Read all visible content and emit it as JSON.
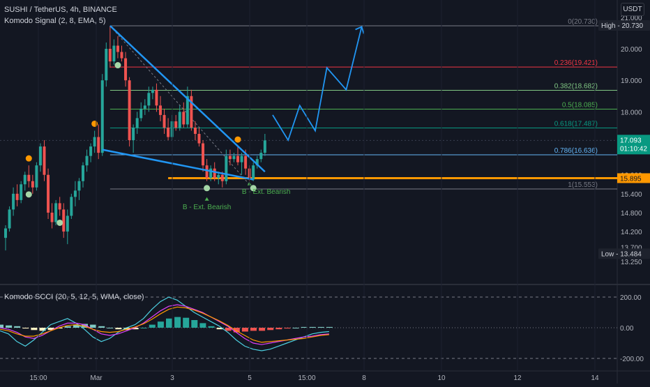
{
  "header": {
    "symbol_line": "SUSHI / TetherUS, 4h, BINANCE",
    "indicator_line": "Komodo Signal (2, 8, EMA, 5)",
    "currency": "USDT"
  },
  "oscillator": {
    "legend": "Komodo SCCI (20, 5, 12, 5, WMA, close)",
    "ticks": [
      "200.00",
      "0.00",
      "-200.00"
    ]
  },
  "price_axis": {
    "ticks": [
      "21.000",
      "20.000",
      "19.000",
      "18.000",
      "17.000",
      "16.000",
      "15.400",
      "14.800",
      "14.200",
      "13.700",
      "13.250"
    ],
    "high_tag": "High - 20.730",
    "low_tag": "Low - 13.484",
    "last_price": "17.093",
    "countdown": "01:10:42",
    "support_label": "15.895"
  },
  "time_axis": [
    "15:00",
    "Mar",
    "3",
    "5",
    "15:00",
    "8",
    "10",
    "12",
    "14"
  ],
  "fib_levels": [
    {
      "label": "0(20.730)",
      "color": "#787b86"
    },
    {
      "label": "0.236(19.421)",
      "color": "#f23645"
    },
    {
      "label": "0.382(18.682)",
      "color": "#81c784"
    },
    {
      "label": "0.5(18.085)",
      "color": "#4caf50"
    },
    {
      "label": "0.618(17.487)",
      "color": "#089981"
    },
    {
      "label": "0.786(16.636)",
      "color": "#64b5f6"
    },
    {
      "label": "1(15.553)",
      "color": "#787b86"
    }
  ],
  "annotations": [
    {
      "text": "B - Ext. Bearish"
    },
    {
      "text": "B - Ext. Bearish"
    }
  ],
  "colors": {
    "up": "#26a69a",
    "down": "#ef5350",
    "wedge": "#2196f3",
    "support": "#ff9800",
    "projection": "#2196f3",
    "buy_dot": "#a5d6a7",
    "sell_dot": "#ff9800"
  },
  "chart_data": {
    "type": "candlestick",
    "symbol": "SUSHI / TetherUS",
    "interval": "4h",
    "candles": [
      {
        "o": 14.0,
        "h": 14.4,
        "l": 13.6,
        "c": 14.3
      },
      {
        "o": 14.3,
        "h": 15.0,
        "l": 14.2,
        "c": 14.9
      },
      {
        "o": 14.9,
        "h": 15.6,
        "l": 14.7,
        "c": 15.4
      },
      {
        "o": 15.4,
        "h": 15.7,
        "l": 15.0,
        "c": 15.2
      },
      {
        "o": 15.2,
        "h": 15.8,
        "l": 15.1,
        "c": 15.7
      },
      {
        "o": 15.7,
        "h": 16.1,
        "l": 15.5,
        "c": 16.0
      },
      {
        "o": 16.0,
        "h": 16.3,
        "l": 15.6,
        "c": 15.8
      },
      {
        "o": 15.8,
        "h": 16.0,
        "l": 15.4,
        "c": 15.6
      },
      {
        "o": 15.6,
        "h": 16.4,
        "l": 15.5,
        "c": 16.3
      },
      {
        "o": 16.3,
        "h": 17.0,
        "l": 16.1,
        "c": 16.9
      },
      {
        "o": 16.9,
        "h": 17.1,
        "l": 15.8,
        "c": 16.0
      },
      {
        "o": 16.0,
        "h": 16.2,
        "l": 14.6,
        "c": 14.8
      },
      {
        "o": 14.8,
        "h": 15.1,
        "l": 14.3,
        "c": 14.5
      },
      {
        "o": 14.5,
        "h": 15.2,
        "l": 14.4,
        "c": 15.1
      },
      {
        "o": 15.1,
        "h": 15.3,
        "l": 14.7,
        "c": 14.9
      },
      {
        "o": 14.9,
        "h": 15.1,
        "l": 14.0,
        "c": 14.2
      },
      {
        "o": 14.2,
        "h": 14.9,
        "l": 13.8,
        "c": 14.7
      },
      {
        "o": 14.7,
        "h": 15.4,
        "l": 14.6,
        "c": 15.3
      },
      {
        "o": 15.3,
        "h": 15.8,
        "l": 15.0,
        "c": 15.5
      },
      {
        "o": 15.5,
        "h": 15.9,
        "l": 15.2,
        "c": 15.8
      },
      {
        "o": 15.8,
        "h": 16.4,
        "l": 15.6,
        "c": 16.3
      },
      {
        "o": 16.3,
        "h": 16.8,
        "l": 16.1,
        "c": 16.6
      },
      {
        "o": 16.6,
        "h": 17.0,
        "l": 16.4,
        "c": 16.9
      },
      {
        "o": 16.9,
        "h": 17.4,
        "l": 16.7,
        "c": 17.2
      },
      {
        "o": 17.2,
        "h": 17.6,
        "l": 16.5,
        "c": 16.7
      },
      {
        "o": 16.7,
        "h": 19.2,
        "l": 16.6,
        "c": 19.0
      },
      {
        "o": 19.0,
        "h": 20.2,
        "l": 18.8,
        "c": 20.0
      },
      {
        "o": 20.0,
        "h": 20.73,
        "l": 19.4,
        "c": 19.6
      },
      {
        "o": 19.6,
        "h": 20.3,
        "l": 19.5,
        "c": 20.1
      },
      {
        "o": 20.1,
        "h": 20.4,
        "l": 19.7,
        "c": 19.9
      },
      {
        "o": 19.9,
        "h": 20.1,
        "l": 19.6,
        "c": 19.7
      },
      {
        "o": 19.7,
        "h": 19.9,
        "l": 18.8,
        "c": 19.0
      },
      {
        "o": 19.0,
        "h": 19.1,
        "l": 16.9,
        "c": 17.1
      },
      {
        "o": 17.1,
        "h": 17.6,
        "l": 16.7,
        "c": 17.5
      },
      {
        "o": 17.5,
        "h": 18.0,
        "l": 17.3,
        "c": 17.8
      },
      {
        "o": 17.8,
        "h": 18.3,
        "l": 17.7,
        "c": 18.1
      },
      {
        "o": 18.1,
        "h": 18.4,
        "l": 17.9,
        "c": 18.2
      },
      {
        "o": 18.2,
        "h": 18.8,
        "l": 18.0,
        "c": 18.6
      },
      {
        "o": 18.6,
        "h": 18.8,
        "l": 18.4,
        "c": 18.7
      },
      {
        "o": 18.7,
        "h": 18.9,
        "l": 18.0,
        "c": 18.2
      },
      {
        "o": 18.2,
        "h": 18.5,
        "l": 17.7,
        "c": 17.9
      },
      {
        "o": 17.9,
        "h": 18.1,
        "l": 17.3,
        "c": 17.5
      },
      {
        "o": 17.5,
        "h": 17.8,
        "l": 17.1,
        "c": 17.2
      },
      {
        "o": 17.2,
        "h": 17.9,
        "l": 17.1,
        "c": 17.7
      },
      {
        "o": 17.7,
        "h": 17.9,
        "l": 17.4,
        "c": 17.5
      },
      {
        "o": 17.5,
        "h": 18.2,
        "l": 17.4,
        "c": 18.0
      },
      {
        "o": 18.0,
        "h": 18.3,
        "l": 17.5,
        "c": 17.6
      },
      {
        "o": 17.6,
        "h": 18.8,
        "l": 17.5,
        "c": 18.5
      },
      {
        "o": 18.5,
        "h": 18.7,
        "l": 17.4,
        "c": 17.5
      },
      {
        "o": 17.5,
        "h": 17.7,
        "l": 17.1,
        "c": 17.3
      },
      {
        "o": 17.3,
        "h": 17.5,
        "l": 16.9,
        "c": 17.0
      },
      {
        "o": 17.0,
        "h": 17.1,
        "l": 16.1,
        "c": 16.3
      },
      {
        "o": 16.3,
        "h": 16.5,
        "l": 15.8,
        "c": 15.9
      },
      {
        "o": 15.9,
        "h": 16.3,
        "l": 15.8,
        "c": 16.2
      },
      {
        "o": 16.2,
        "h": 16.4,
        "l": 15.8,
        "c": 15.9
      },
      {
        "o": 15.9,
        "h": 16.1,
        "l": 15.7,
        "c": 16.0
      },
      {
        "o": 16.0,
        "h": 16.1,
        "l": 15.6,
        "c": 15.8
      },
      {
        "o": 15.8,
        "h": 16.8,
        "l": 15.7,
        "c": 16.6
      },
      {
        "o": 16.6,
        "h": 16.8,
        "l": 16.3,
        "c": 16.5
      },
      {
        "o": 16.5,
        "h": 16.7,
        "l": 16.4,
        "c": 16.6
      },
      {
        "o": 16.6,
        "h": 16.9,
        "l": 16.3,
        "c": 16.4
      },
      {
        "o": 16.4,
        "h": 16.7,
        "l": 16.0,
        "c": 16.6
      },
      {
        "o": 16.6,
        "h": 16.8,
        "l": 16.0,
        "c": 16.2
      },
      {
        "o": 16.2,
        "h": 16.3,
        "l": 15.8,
        "c": 15.85
      },
      {
        "o": 15.85,
        "h": 16.4,
        "l": 15.8,
        "c": 16.3
      },
      {
        "o": 16.3,
        "h": 16.6,
        "l": 16.2,
        "c": 16.5
      },
      {
        "o": 16.5,
        "h": 16.8,
        "l": 16.4,
        "c": 16.7
      },
      {
        "o": 16.7,
        "h": 17.3,
        "l": 16.6,
        "c": 17.093
      }
    ],
    "ylim": [
      13.0,
      21.2
    ],
    "fibonacci": [
      {
        "ratio": 0,
        "price": 20.73
      },
      {
        "ratio": 0.236,
        "price": 19.421
      },
      {
        "ratio": 0.382,
        "price": 18.682
      },
      {
        "ratio": 0.5,
        "price": 18.085
      },
      {
        "ratio": 0.618,
        "price": 17.487
      },
      {
        "ratio": 0.786,
        "price": 16.636
      },
      {
        "ratio": 1,
        "price": 15.553
      }
    ],
    "support_level": 15.895,
    "wedge": {
      "upper": [
        {
          "i": 27,
          "p": 20.73
        },
        {
          "i": 67,
          "p": 16.1
        }
      ],
      "lower": [
        {
          "i": 25,
          "p": 16.8
        },
        {
          "i": 64,
          "p": 15.85
        }
      ]
    },
    "projection_path": [
      {
        "i": 69,
        "p": 17.9
      },
      {
        "i": 73,
        "p": 17.1
      },
      {
        "i": 76,
        "p": 18.2
      },
      {
        "i": 80,
        "p": 17.4
      },
      {
        "i": 83,
        "p": 19.4
      },
      {
        "i": 88,
        "p": 18.7
      },
      {
        "i": 92,
        "p": 20.7
      }
    ],
    "buy_signals": [
      6,
      14,
      29,
      52,
      64
    ],
    "sell_signals": [
      6,
      23,
      60
    ],
    "oscillator": {
      "range": [
        -250,
        250
      ],
      "ticks": [
        200,
        0,
        -200
      ],
      "line1": [
        -20,
        -40,
        -90,
        -120,
        -80,
        -30,
        20,
        40,
        60,
        30,
        -10,
        -60,
        -90,
        -70,
        -30,
        0,
        20,
        60,
        120,
        170,
        200,
        180,
        140,
        100,
        70,
        40,
        10,
        -30,
        -80,
        -120,
        -140,
        -150,
        -140,
        -120,
        -100,
        -80,
        -60,
        -40,
        -30,
        -25
      ],
      "line2": [
        0,
        -10,
        -30,
        -60,
        -70,
        -50,
        -20,
        10,
        30,
        30,
        20,
        -10,
        -40,
        -50,
        -40,
        -20,
        0,
        30,
        70,
        110,
        140,
        150,
        140,
        120,
        100,
        70,
        40,
        10,
        -30,
        -70,
        -100,
        -110,
        -100,
        -90,
        -80,
        -70,
        -60,
        -55,
        -45,
        -40
      ],
      "line3": [
        -10,
        -20,
        -40,
        -55,
        -55,
        -40,
        -20,
        0,
        15,
        20,
        10,
        -10,
        -25,
        -30,
        -25,
        -10,
        5,
        25,
        55,
        90,
        120,
        135,
        130,
        115,
        95,
        70,
        45,
        15,
        -20,
        -50,
        -80,
        -95,
        -90,
        -85,
        -80,
        -75,
        -70,
        -60,
        -50,
        -45
      ],
      "histogram": [
        20,
        15,
        10,
        -5,
        -15,
        -20,
        -15,
        -5,
        10,
        20,
        25,
        20,
        10,
        0,
        -10,
        -15,
        -10,
        0,
        20,
        40,
        60,
        70,
        65,
        50,
        30,
        10,
        -10,
        -20,
        -30,
        -25,
        -20,
        -20,
        -15,
        -10,
        -5,
        0,
        5,
        5,
        5,
        5
      ]
    }
  }
}
